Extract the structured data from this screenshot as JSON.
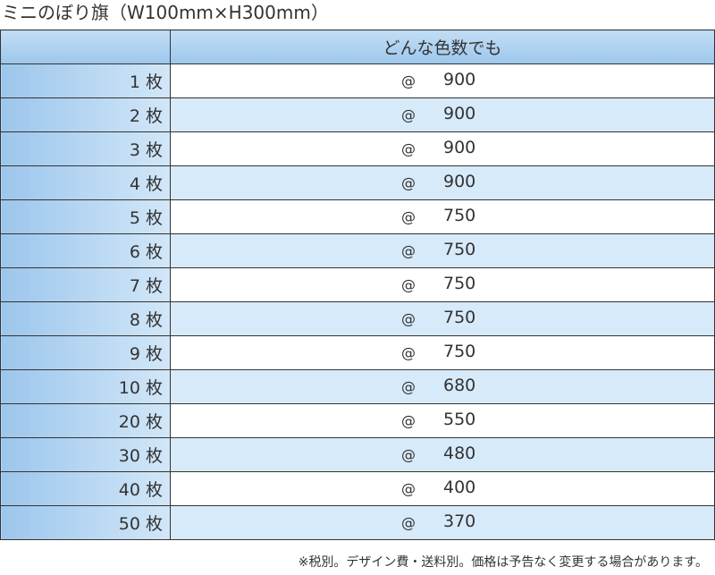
{
  "title": "ミニのぼり旗（W100mm×H300mm）",
  "table": {
    "header": [
      "どんな色数でも"
    ],
    "rows": [
      [
        "1 枚",
        "@",
        900
      ],
      [
        "2 枚",
        "@",
        900
      ],
      [
        "3 枚",
        "@",
        900
      ],
      [
        "4 枚",
        "@",
        900
      ],
      [
        "5 枚",
        "@",
        750
      ],
      [
        "6 枚",
        "@",
        750
      ],
      [
        "7 枚",
        "@",
        750
      ],
      [
        "8 枚",
        "@",
        750
      ],
      [
        "9 枚",
        "@",
        750
      ],
      [
        "10 枚",
        "@",
        680
      ],
      [
        "20 枚",
        "@",
        550
      ],
      [
        "30 枚",
        "@",
        480
      ],
      [
        "40 枚",
        "@",
        400
      ],
      [
        "50 枚",
        "@",
        370
      ]
    ]
  },
  "note": "※税別。デザイン費・送料別。価格は予告なく変更する場合があります。"
}
